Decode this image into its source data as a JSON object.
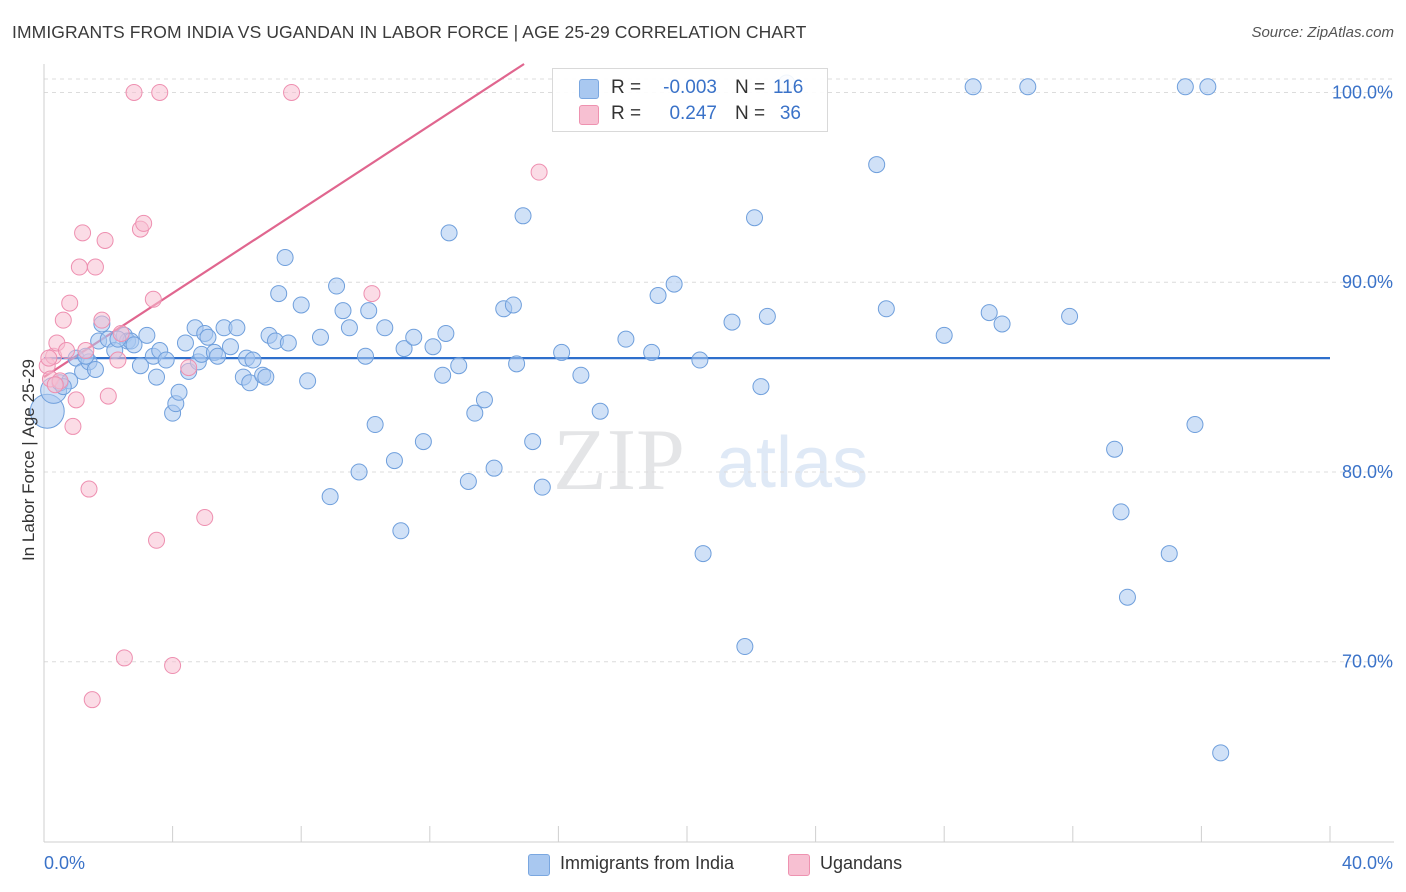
{
  "title": "IMMIGRANTS FROM INDIA VS UGANDAN IN LABOR FORCE | AGE 25-29 CORRELATION CHART",
  "source": "Source: ZipAtlas.com",
  "watermark": {
    "zip": "ZIP",
    "atlas": "atlas"
  },
  "legend": {
    "r_label": "R =",
    "n_label": "N =",
    "rows": [
      {
        "r": "-0.003",
        "n": "116",
        "color": "#a9c8f0",
        "border": "#7aa7e0"
      },
      {
        "r": "0.247",
        "n": "36",
        "color": "#f7c0d2",
        "border": "#ee92b0"
      }
    ]
  },
  "bottom_legend": [
    {
      "label": "Immigrants from India",
      "color": "#a9c8f0",
      "border": "#7aa7e0"
    },
    {
      "label": "Ugandans",
      "color": "#f7c0d2",
      "border": "#ee92b0"
    }
  ],
  "chart_data": {
    "type": "scatter",
    "title": "IMMIGRANTS FROM INDIA VS UGANDAN IN LABOR FORCE | AGE 25-29 CORRELATION CHART",
    "xlabel": "",
    "ylabel": "In Labor Force | Age 25-29",
    "xlim": [
      0,
      40
    ],
    "ylim": [
      60.5,
      101.5
    ],
    "x_tick_labels": [
      "0.0%",
      "40.0%"
    ],
    "y_ticks": [
      70,
      80,
      90,
      100
    ],
    "y_tick_labels": [
      "70.0%",
      "80.0%",
      "90.0%",
      "100.0%"
    ],
    "grid": true,
    "legend_position": "top-center",
    "series": [
      {
        "name": "Immigrants from India",
        "color": "#a9c8f0",
        "stroke": "#6f9fdc",
        "line_color": "#2e6fcc",
        "trend": {
          "x": [
            0,
            40
          ],
          "y": [
            86.0,
            86.0
          ]
        },
        "points": [
          [
            0.1,
            83.2
          ],
          [
            0.3,
            84.3
          ],
          [
            0.5,
            84.7
          ],
          [
            0.8,
            84.8
          ],
          [
            1.0,
            86.0
          ],
          [
            1.2,
            85.3
          ],
          [
            1.4,
            85.8
          ],
          [
            1.6,
            85.4
          ],
          [
            1.7,
            86.9
          ],
          [
            1.8,
            87.8
          ],
          [
            2.0,
            87.0
          ],
          [
            2.2,
            86.4
          ],
          [
            2.5,
            87.2
          ],
          [
            2.6,
            86.9
          ],
          [
            2.7,
            86.9
          ],
          [
            2.8,
            86.7
          ],
          [
            3.0,
            85.6
          ],
          [
            3.2,
            87.2
          ],
          [
            3.4,
            86.1
          ],
          [
            3.5,
            85.0
          ],
          [
            3.6,
            86.4
          ],
          [
            3.8,
            85.9
          ],
          [
            4.0,
            83.1
          ],
          [
            4.1,
            83.6
          ],
          [
            4.2,
            84.2
          ],
          [
            4.4,
            86.8
          ],
          [
            4.5,
            85.3
          ],
          [
            4.7,
            87.6
          ],
          [
            4.8,
            85.8
          ],
          [
            4.9,
            86.2
          ],
          [
            5.0,
            87.3
          ],
          [
            5.1,
            87.1
          ],
          [
            5.3,
            86.3
          ],
          [
            5.4,
            86.1
          ],
          [
            5.6,
            87.6
          ],
          [
            5.8,
            86.6
          ],
          [
            6.0,
            87.6
          ],
          [
            6.2,
            85.0
          ],
          [
            6.3,
            86.0
          ],
          [
            6.4,
            84.7
          ],
          [
            6.5,
            85.9
          ],
          [
            6.8,
            85.1
          ],
          [
            6.9,
            85.0
          ],
          [
            7.0,
            87.2
          ],
          [
            7.2,
            86.9
          ],
          [
            7.3,
            89.4
          ],
          [
            7.5,
            91.3
          ],
          [
            7.6,
            86.8
          ],
          [
            8.0,
            88.8
          ],
          [
            8.2,
            84.8
          ],
          [
            8.6,
            87.1
          ],
          [
            8.9,
            78.7
          ],
          [
            9.1,
            89.8
          ],
          [
            9.3,
            88.5
          ],
          [
            9.5,
            87.6
          ],
          [
            9.8,
            80.0
          ],
          [
            10.0,
            86.1
          ],
          [
            10.1,
            88.5
          ],
          [
            10.3,
            82.5
          ],
          [
            10.6,
            87.6
          ],
          [
            10.9,
            80.6
          ],
          [
            11.1,
            76.9
          ],
          [
            11.2,
            86.5
          ],
          [
            11.5,
            87.1
          ],
          [
            11.8,
            81.6
          ],
          [
            12.1,
            86.6
          ],
          [
            12.4,
            85.1
          ],
          [
            12.5,
            87.3
          ],
          [
            12.6,
            92.6
          ],
          [
            12.9,
            85.6
          ],
          [
            13.2,
            79.5
          ],
          [
            13.4,
            83.1
          ],
          [
            13.7,
            83.8
          ],
          [
            14.0,
            80.2
          ],
          [
            14.3,
            88.6
          ],
          [
            14.6,
            88.8
          ],
          [
            14.7,
            85.7
          ],
          [
            14.9,
            93.5
          ],
          [
            15.2,
            81.6
          ],
          [
            15.5,
            79.2
          ],
          [
            16.1,
            86.3
          ],
          [
            16.7,
            85.1
          ],
          [
            17.3,
            83.2
          ],
          [
            18.1,
            87.0
          ],
          [
            18.9,
            86.3
          ],
          [
            19.1,
            89.3
          ],
          [
            19.6,
            89.9
          ],
          [
            20.4,
            85.9
          ],
          [
            20.5,
            75.7
          ],
          [
            21.4,
            87.9
          ],
          [
            21.8,
            70.8
          ],
          [
            22.1,
            93.4
          ],
          [
            22.3,
            84.5
          ],
          [
            22.5,
            88.2
          ],
          [
            23.1,
            100.5
          ],
          [
            25.9,
            96.2
          ],
          [
            26.2,
            88.6
          ],
          [
            28.0,
            87.2
          ],
          [
            28.9,
            100.3
          ],
          [
            29.4,
            88.4
          ],
          [
            29.8,
            87.8
          ],
          [
            30.6,
            100.3
          ],
          [
            31.9,
            88.2
          ],
          [
            33.3,
            81.2
          ],
          [
            33.5,
            77.9
          ],
          [
            33.7,
            73.4
          ],
          [
            35.0,
            75.7
          ],
          [
            35.5,
            100.3
          ],
          [
            35.8,
            82.5
          ],
          [
            36.2,
            100.3
          ],
          [
            36.6,
            65.2
          ],
          [
            0.6,
            84.5
          ],
          [
            1.3,
            86.1
          ],
          [
            2.3,
            87.0
          ]
        ]
      },
      {
        "name": "Ugandans",
        "color": "#f7c0d2",
        "stroke": "#ee8fb0",
        "line_color": "#e0668f",
        "trend": {
          "x": [
            0,
            20
          ],
          "y": [
            85.0,
            107.1
          ]
        },
        "points": [
          [
            0.1,
            85.6
          ],
          [
            0.2,
            84.9
          ],
          [
            0.3,
            86.1
          ],
          [
            0.4,
            86.8
          ],
          [
            0.5,
            84.8
          ],
          [
            0.6,
            88.0
          ],
          [
            0.7,
            86.4
          ],
          [
            0.8,
            88.9
          ],
          [
            0.9,
            82.4
          ],
          [
            1.0,
            83.8
          ],
          [
            1.1,
            90.8
          ],
          [
            1.2,
            92.6
          ],
          [
            1.3,
            86.4
          ],
          [
            1.4,
            79.1
          ],
          [
            1.5,
            68.0
          ],
          [
            1.6,
            90.8
          ],
          [
            1.8,
            88.0
          ],
          [
            1.9,
            92.2
          ],
          [
            2.0,
            84.0
          ],
          [
            2.3,
            85.9
          ],
          [
            2.4,
            87.3
          ],
          [
            2.5,
            70.2
          ],
          [
            2.8,
            100.0
          ],
          [
            3.0,
            92.8
          ],
          [
            3.1,
            93.1
          ],
          [
            3.4,
            89.1
          ],
          [
            3.5,
            76.4
          ],
          [
            3.6,
            100.0
          ],
          [
            4.0,
            69.8
          ],
          [
            4.5,
            85.5
          ],
          [
            5.0,
            77.6
          ],
          [
            7.7,
            100.0
          ],
          [
            10.2,
            89.4
          ],
          [
            15.4,
            95.8
          ],
          [
            0.15,
            86.0
          ],
          [
            0.35,
            84.6
          ]
        ]
      }
    ]
  }
}
